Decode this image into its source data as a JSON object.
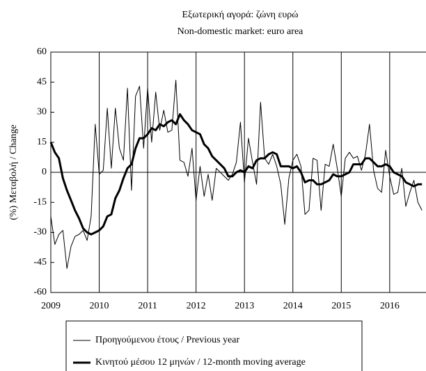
{
  "chart_data": {
    "type": "line",
    "title": "Εξωτερική αγορά: ζώνη ευρώ",
    "subtitle": "Non-domestic market: euro area",
    "y_label": "(%) Μεταβολή / Change",
    "x": [
      2009,
      2009.083,
      2009.167,
      2009.25,
      2009.333,
      2009.417,
      2009.5,
      2009.583,
      2009.667,
      2009.75,
      2009.833,
      2009.917,
      2010,
      2010.083,
      2010.167,
      2010.25,
      2010.333,
      2010.417,
      2010.5,
      2010.583,
      2010.667,
      2010.75,
      2010.833,
      2010.917,
      2011,
      2011.083,
      2011.167,
      2011.25,
      2011.333,
      2011.417,
      2011.5,
      2011.583,
      2011.667,
      2011.75,
      2011.833,
      2011.917,
      2012,
      2012.083,
      2012.167,
      2012.25,
      2012.333,
      2012.417,
      2012.5,
      2012.583,
      2012.667,
      2012.75,
      2012.833,
      2012.917,
      2013,
      2013.083,
      2013.167,
      2013.25,
      2013.333,
      2013.417,
      2013.5,
      2013.583,
      2013.667,
      2013.75,
      2013.833,
      2013.917,
      2014,
      2014.083,
      2014.167,
      2014.25,
      2014.333,
      2014.417,
      2014.5,
      2014.583,
      2014.667,
      2014.75,
      2014.833,
      2014.917,
      2015,
      2015.083,
      2015.167,
      2015.25,
      2015.333,
      2015.417,
      2015.5,
      2015.583,
      2015.667,
      2015.75,
      2015.833,
      2015.917,
      2016,
      2016.083,
      2016.167,
      2016.25,
      2016.333,
      2016.417,
      2016.5,
      2016.583,
      2016.667
    ],
    "series": [
      {
        "name": "Προηγούμενου έτους / Previous year",
        "color": "#000000",
        "width": 1,
        "values": [
          -22,
          -36,
          -31,
          -29,
          -48,
          -37,
          -32,
          -31,
          -29,
          -34,
          -22,
          24,
          -1,
          1,
          32,
          2,
          32,
          12,
          6,
          42,
          -9,
          38,
          43,
          12,
          42,
          15,
          40,
          21,
          31,
          20,
          21,
          46,
          6,
          5,
          -2,
          12,
          -14,
          3,
          -12,
          -1,
          -14,
          2,
          0,
          -2,
          -4,
          -1,
          5,
          25,
          -5,
          17,
          5,
          -6,
          35,
          7,
          4,
          9,
          3,
          -6,
          -26,
          -3,
          6,
          9,
          3,
          -21,
          -19,
          7,
          6,
          -19,
          4,
          3,
          14,
          2,
          -12,
          7,
          10,
          7,
          8,
          1,
          9,
          24,
          1,
          -8,
          -10,
          11,
          -2,
          -11,
          -10,
          2,
          -17,
          -10,
          -4,
          -15,
          -19
        ]
      },
      {
        "name": "Κινητού μέσου 12 μηνών / 12-month moving average",
        "color": "#000000",
        "width": 3,
        "values": [
          15,
          10,
          7,
          -3,
          -9,
          -14,
          -19,
          -23,
          -28,
          -30,
          -31,
          -30,
          -29,
          -27,
          -22,
          -21,
          -13,
          -9,
          -3,
          2,
          4,
          12,
          17,
          17,
          19,
          22,
          21,
          24,
          23,
          25,
          26,
          24,
          29,
          26,
          24,
          21,
          20,
          19,
          14,
          12,
          8,
          6,
          4,
          2,
          -2,
          -2,
          0,
          1,
          0,
          3,
          2,
          6,
          7,
          7,
          9,
          10,
          9,
          3,
          3,
          3,
          2,
          3,
          0,
          -5,
          -4,
          -4,
          -6,
          -6,
          -5,
          -4,
          -1,
          -2,
          -2,
          -1,
          0,
          4,
          4,
          4,
          7,
          7,
          5,
          3,
          3,
          4,
          3,
          0,
          -1,
          -2,
          -5,
          -6,
          -7,
          -6,
          -6
        ]
      }
    ],
    "xlim": [
      2009,
      2016.75
    ],
    "xticks": [
      2009,
      2010,
      2011,
      2012,
      2013,
      2014,
      2015,
      2016
    ],
    "ylim": [
      -60,
      60
    ],
    "yticks": [
      -60,
      -45,
      -30,
      -15,
      0,
      15,
      30,
      45,
      60
    ],
    "grid": "x"
  }
}
